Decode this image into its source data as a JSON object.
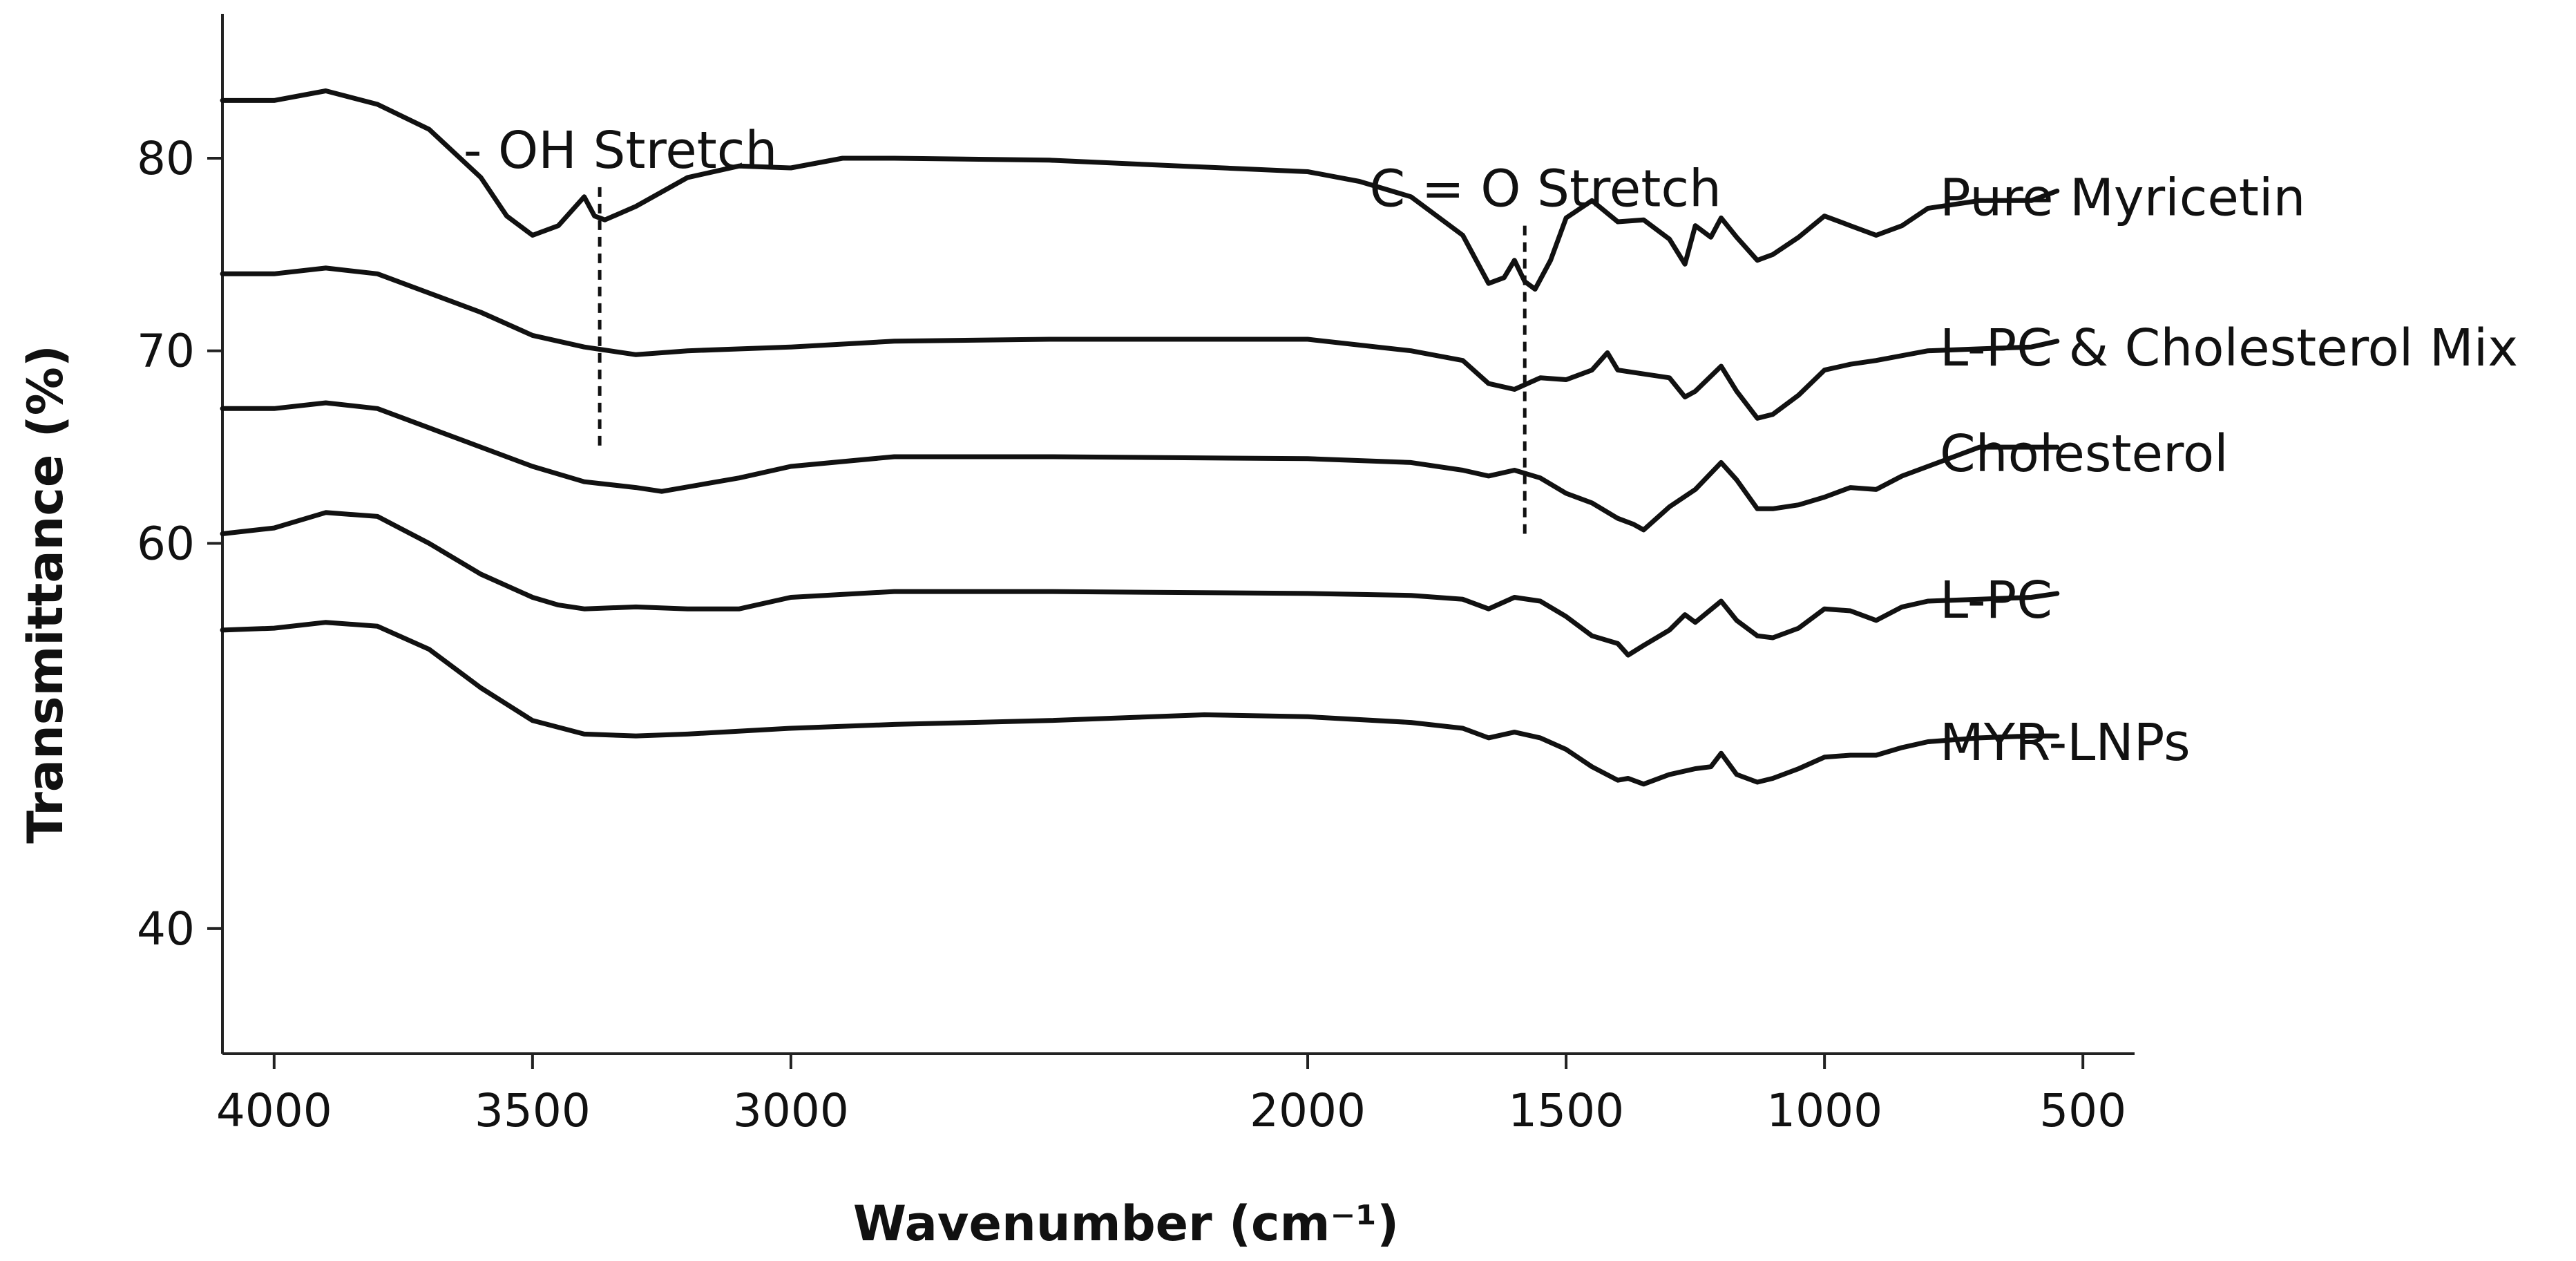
{
  "chart_data": {
    "type": "line",
    "xlabel": "Wavenumber (cm⁻¹)",
    "ylabel": "Transmittance (%)",
    "xlim": [
      4100,
      400
    ],
    "ylim": [
      33.5,
      87.5
    ],
    "x_reversed": true,
    "grid": false,
    "legend": "inline-right",
    "x_ticks": [
      4000,
      3500,
      3000,
      2000,
      1500,
      1000,
      500
    ],
    "x_tick_labels": [
      "4000",
      "3500",
      "3000",
      "2000",
      "1500",
      "1000",
      "500"
    ],
    "y_ticks": [
      80,
      70,
      60,
      40
    ],
    "y_tick_labels": [
      "80",
      "70",
      "60",
      "40"
    ],
    "annotations": [
      {
        "text": "- OH Stretch",
        "x": 3370,
        "y_top": 78.5,
        "y_bottom": 65.0
      },
      {
        "text": "C = O Stretch",
        "x": 1580,
        "y_top": 76.5,
        "y_bottom": 60.5
      }
    ],
    "series": [
      {
        "name": "Pure Myricetin",
        "x": [
          4100,
          4000,
          3900,
          3800,
          3700,
          3600,
          3550,
          3500,
          3450,
          3400,
          3380,
          3360,
          3300,
          3200,
          3100,
          3000,
          2900,
          2800,
          2500,
          2000,
          1900,
          1800,
          1700,
          1650,
          1620,
          1600,
          1580,
          1560,
          1530,
          1500,
          1450,
          1400,
          1350,
          1300,
          1270,
          1250,
          1220,
          1200,
          1170,
          1130,
          1100,
          1050,
          1000,
          950,
          900,
          850,
          800,
          700,
          600,
          550
        ],
        "y": [
          83.0,
          83.0,
          83.5,
          82.8,
          81.5,
          79.0,
          77.0,
          76.0,
          76.5,
          78.0,
          77.0,
          76.8,
          77.5,
          79.0,
          79.6,
          79.5,
          80.0,
          80.0,
          79.9,
          79.3,
          78.8,
          78.0,
          76.0,
          73.5,
          73.8,
          74.7,
          73.6,
          73.2,
          74.7,
          76.9,
          77.8,
          76.7,
          76.8,
          75.8,
          74.5,
          76.5,
          75.9,
          76.9,
          75.9,
          74.7,
          75.0,
          75.9,
          77.0,
          76.5,
          76.0,
          76.5,
          77.4,
          77.8,
          77.8,
          78.3
        ]
      },
      {
        "name": "L-PC & Cholesterol Mix",
        "x": [
          4100,
          4000,
          3900,
          3800,
          3700,
          3600,
          3500,
          3400,
          3300,
          3200,
          3000,
          2800,
          2500,
          2000,
          1900,
          1800,
          1700,
          1650,
          1600,
          1550,
          1500,
          1450,
          1420,
          1400,
          1350,
          1300,
          1270,
          1250,
          1200,
          1170,
          1130,
          1100,
          1050,
          1000,
          950,
          900,
          800,
          700,
          600,
          550
        ],
        "y": [
          74.0,
          74.0,
          74.3,
          74.0,
          73.0,
          72.0,
          70.8,
          70.2,
          69.8,
          70.0,
          70.2,
          70.5,
          70.6,
          70.6,
          70.3,
          70.0,
          69.5,
          68.3,
          68.0,
          68.6,
          68.5,
          69.0,
          69.9,
          69.0,
          68.8,
          68.6,
          67.6,
          67.9,
          69.2,
          67.9,
          66.5,
          66.7,
          67.7,
          69.0,
          69.3,
          69.5,
          70.0,
          70.1,
          70.2,
          70.5
        ]
      },
      {
        "name": "Cholesterol",
        "x": [
          4100,
          4000,
          3900,
          3800,
          3700,
          3600,
          3500,
          3400,
          3300,
          3250,
          3100,
          3000,
          2800,
          2500,
          2000,
          1800,
          1700,
          1650,
          1600,
          1550,
          1500,
          1450,
          1400,
          1370,
          1350,
          1300,
          1250,
          1200,
          1170,
          1130,
          1100,
          1050,
          1000,
          950,
          900,
          850,
          800,
          700,
          600,
          550
        ],
        "y": [
          67.0,
          67.0,
          67.3,
          67.0,
          66.0,
          65.0,
          64.0,
          63.2,
          62.9,
          62.7,
          63.4,
          64.0,
          64.5,
          64.5,
          64.4,
          64.2,
          63.8,
          63.5,
          63.8,
          63.4,
          62.6,
          62.1,
          61.3,
          61.0,
          60.7,
          61.9,
          62.8,
          64.2,
          63.3,
          61.8,
          61.8,
          62.0,
          62.4,
          62.9,
          62.8,
          63.5,
          64.0,
          65.0,
          65.0,
          65.0
        ]
      },
      {
        "name": "L-PC",
        "x": [
          4100,
          4000,
          3900,
          3800,
          3700,
          3600,
          3500,
          3450,
          3400,
          3300,
          3200,
          3100,
          3000,
          2800,
          2500,
          2000,
          1800,
          1700,
          1650,
          1600,
          1550,
          1500,
          1450,
          1400,
          1380,
          1350,
          1300,
          1270,
          1250,
          1200,
          1170,
          1130,
          1100,
          1050,
          1000,
          950,
          900,
          850,
          800,
          700,
          600,
          550
        ],
        "y": [
          60.5,
          60.8,
          61.6,
          61.4,
          60.0,
          58.4,
          57.2,
          56.8,
          56.6,
          56.7,
          56.6,
          56.6,
          57.2,
          57.5,
          57.5,
          57.4,
          57.3,
          57.1,
          56.6,
          57.2,
          57.0,
          56.2,
          55.2,
          54.8,
          54.2,
          54.7,
          55.5,
          56.3,
          55.9,
          57.0,
          56.0,
          55.2,
          55.1,
          55.6,
          56.6,
          56.5,
          56.0,
          56.7,
          57.0,
          57.1,
          57.2,
          57.4
        ]
      },
      {
        "name": "MYR-LNPs",
        "x": [
          4100,
          4000,
          3900,
          3800,
          3700,
          3600,
          3500,
          3400,
          3300,
          3200,
          3000,
          2800,
          2500,
          2200,
          2000,
          1800,
          1700,
          1650,
          1600,
          1550,
          1500,
          1450,
          1400,
          1380,
          1350,
          1300,
          1250,
          1220,
          1200,
          1170,
          1130,
          1100,
          1050,
          1000,
          950,
          900,
          850,
          800,
          700,
          600,
          550
        ],
        "y": [
          55.5,
          55.6,
          55.9,
          55.7,
          54.5,
          52.5,
          50.8,
          50.1,
          50.0,
          50.1,
          50.4,
          50.6,
          50.8,
          51.1,
          51.0,
          50.7,
          50.4,
          49.9,
          50.2,
          49.9,
          49.3,
          48.4,
          47.7,
          47.8,
          47.5,
          48.0,
          48.3,
          48.4,
          49.1,
          48.0,
          47.6,
          47.8,
          48.3,
          48.9,
          49.0,
          49.0,
          49.4,
          49.7,
          49.9,
          50.0,
          50.0
        ]
      }
    ]
  }
}
